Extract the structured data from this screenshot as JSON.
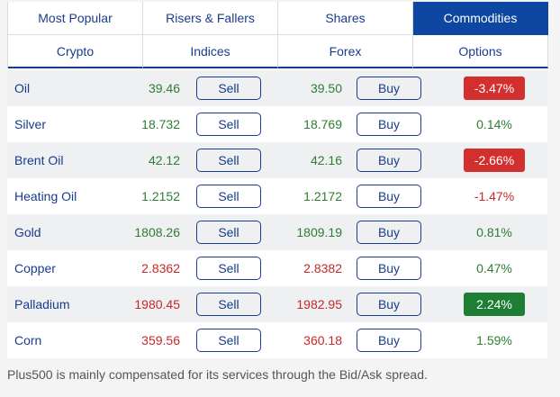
{
  "tabs": {
    "row1": [
      "Most Popular",
      "Risers & Fallers",
      "Shares",
      "Commodities"
    ],
    "row2": [
      "Crypto",
      "Indices",
      "Forex",
      "Options"
    ],
    "active": "Commodities"
  },
  "buttons": {
    "sell_label": "Sell",
    "buy_label": "Buy"
  },
  "instruments": [
    {
      "name": "Oil",
      "sell": "39.46",
      "buy": "39.50",
      "change": "-3.47%",
      "price_color": "pos",
      "change_style": "red"
    },
    {
      "name": "Silver",
      "sell": "18.732",
      "buy": "18.769",
      "change": "0.14%",
      "price_color": "pos",
      "change_style": "plain-pos"
    },
    {
      "name": "Brent Oil",
      "sell": "42.12",
      "buy": "42.16",
      "change": "-2.66%",
      "price_color": "pos",
      "change_style": "red"
    },
    {
      "name": "Heating Oil",
      "sell": "1.2152",
      "buy": "1.2172",
      "change": "-1.47%",
      "price_color": "pos",
      "change_style": "plain-neg"
    },
    {
      "name": "Gold",
      "sell": "1808.26",
      "buy": "1809.19",
      "change": "0.81%",
      "price_color": "pos",
      "change_style": "plain-pos"
    },
    {
      "name": "Copper",
      "sell": "2.8362",
      "buy": "2.8382",
      "change": "0.47%",
      "price_color": "neg",
      "change_style": "plain-pos"
    },
    {
      "name": "Palladium",
      "sell": "1980.45",
      "buy": "1982.95",
      "change": "2.24%",
      "price_color": "neg",
      "change_style": "green"
    },
    {
      "name": "Corn",
      "sell": "359.56",
      "buy": "360.18",
      "change": "1.59%",
      "price_color": "neg",
      "change_style": "plain-pos"
    }
  ],
  "footer": {
    "text": "Plus500 is mainly compensated for its services through the Bid/Ask spread."
  },
  "colors": {
    "accent": "#0d47a1",
    "positive": "#2e7d32",
    "negative": "#c62828",
    "badge_red": "#d32f2f",
    "badge_green": "#1e7e34"
  }
}
